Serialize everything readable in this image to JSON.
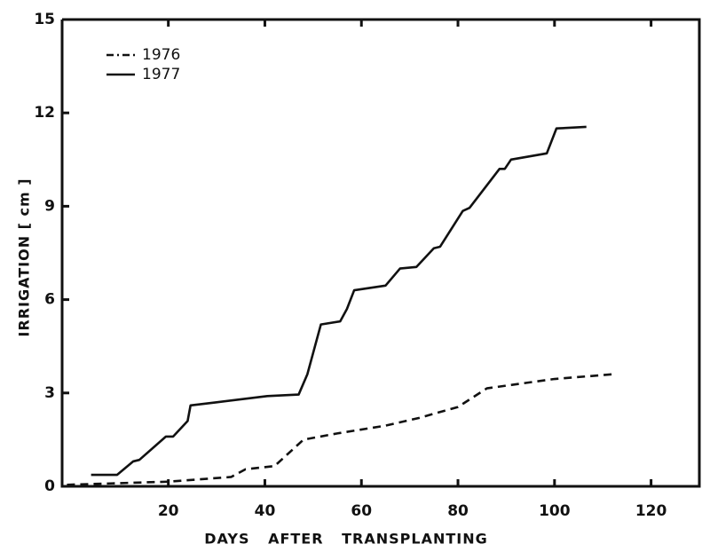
{
  "chart_data": {
    "type": "line",
    "xlabel": "DAYS AFTER TRANSPLANTING",
    "ylabel": "IRRIGATION [ cm ]",
    "xlim": [
      -2,
      130
    ],
    "xticks": [
      20,
      40,
      60,
      80,
      100,
      120
    ],
    "ylim": [
      0,
      15
    ],
    "yticks": [
      0,
      3,
      6,
      9,
      12,
      15
    ],
    "legend": "upper left",
    "series": [
      {
        "name": "1976",
        "color": "#111111",
        "linestyle": "dashed",
        "x": [
          -1,
          20,
          33,
          36,
          42,
          48,
          55,
          65,
          72,
          80,
          86,
          100,
          112
        ],
        "values": [
          0.05,
          0.15,
          0.3,
          0.55,
          0.65,
          1.5,
          1.7,
          1.95,
          2.2,
          2.55,
          3.15,
          3.45,
          3.6
        ]
      },
      {
        "name": "1977",
        "color": "#111111",
        "linestyle": "solid",
        "x": [
          4,
          9.4,
          12.7,
          14,
          19.5,
          21,
          24,
          24.6,
          30,
          40.5,
          47,
          48.8,
          51.6,
          55.6,
          57,
          58.5,
          65,
          68,
          71.4,
          75,
          76.3,
          81,
          82.4,
          88.6,
          89.7,
          91,
          98.4,
          100.4,
          106.6
        ],
        "values": [
          0.37,
          0.37,
          0.8,
          0.85,
          1.6,
          1.6,
          2.1,
          2.6,
          2.7,
          2.9,
          2.95,
          3.6,
          5.2,
          5.3,
          5.7,
          6.3,
          6.45,
          7.0,
          7.05,
          7.65,
          7.7,
          8.85,
          8.95,
          10.2,
          10.2,
          10.5,
          10.7,
          11.5,
          11.55
        ]
      }
    ]
  }
}
